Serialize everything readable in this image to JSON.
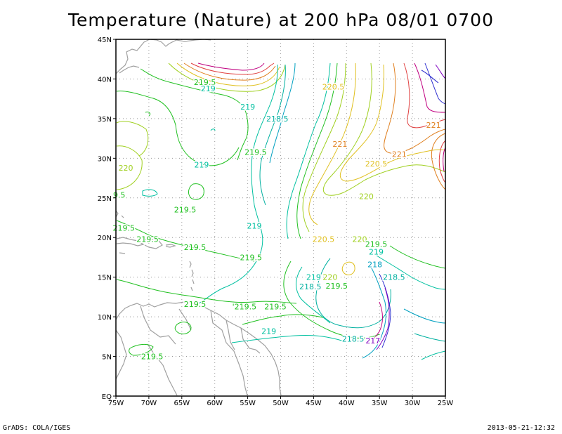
{
  "title": "Temperature (Nature) at 200 hPa 08/01 0700",
  "footer": {
    "left": "GrADS: COLA/IGES",
    "right": "2013-05-21-12:32"
  },
  "map": {
    "lon_range": [
      -75,
      -25
    ],
    "lat_range": [
      0,
      45
    ],
    "x_ticks": [
      {
        "value": -75,
        "label": "75W"
      },
      {
        "value": -70,
        "label": "70W"
      },
      {
        "value": -65,
        "label": "65W"
      },
      {
        "value": -60,
        "label": "60W"
      },
      {
        "value": -55,
        "label": "55W"
      },
      {
        "value": -50,
        "label": "50W"
      },
      {
        "value": -45,
        "label": "45W"
      },
      {
        "value": -40,
        "label": "40W"
      },
      {
        "value": -35,
        "label": "35W"
      },
      {
        "value": -30,
        "label": "30W"
      },
      {
        "value": -25,
        "label": "25W"
      }
    ],
    "y_ticks": [
      {
        "value": 0,
        "label": "EQ"
      },
      {
        "value": 5,
        "label": "5N"
      },
      {
        "value": 10,
        "label": "10N"
      },
      {
        "value": 15,
        "label": "15N"
      },
      {
        "value": 20,
        "label": "20N"
      },
      {
        "value": 25,
        "label": "25N"
      },
      {
        "value": 30,
        "label": "30N"
      },
      {
        "value": 35,
        "label": "35N"
      },
      {
        "value": 40,
        "label": "40N"
      },
      {
        "value": 45,
        "label": "45N"
      }
    ],
    "grid": "dotted",
    "coastline_color": "#a0a0a0",
    "contour_colors": {
      "217": "#8000c0",
      "217.5": "#3030d0",
      "218": "#00a0c0",
      "218.5": "#00b0a0",
      "219": "#00c0a0",
      "219.5": "#20c020",
      "220": "#a0d020",
      "220.5": "#e0c020",
      "221": "#e08020",
      "221.5": "#e04040",
      "222": "#c00080"
    },
    "contour_labels": [
      {
        "text": "219.5",
        "lon": -61.5,
        "lat": 39.6
      },
      {
        "text": "219",
        "lon": -61.0,
        "lat": 38.8
      },
      {
        "text": "219",
        "lon": -55.0,
        "lat": 36.5
      },
      {
        "text": "218.5",
        "lon": -50.5,
        "lat": 35.0
      },
      {
        "text": "219.5",
        "lon": -53.8,
        "lat": 30.8
      },
      {
        "text": "219",
        "lon": -62.0,
        "lat": 29.2
      },
      {
        "text": "220",
        "lon": -73.5,
        "lat": 28.8
      },
      {
        "text": "9.5",
        "lon": -74.5,
        "lat": 25.4
      },
      {
        "text": "219.5",
        "lon": -64.5,
        "lat": 23.5
      },
      {
        "text": "219",
        "lon": -54.0,
        "lat": 21.5
      },
      {
        "text": "219.5",
        "lon": -73.8,
        "lat": 21.2
      },
      {
        "text": "219.5",
        "lon": -70.2,
        "lat": 19.8
      },
      {
        "text": "219.5",
        "lon": -63.0,
        "lat": 18.8
      },
      {
        "text": "219.5",
        "lon": -54.5,
        "lat": 17.5
      },
      {
        "text": "220.5",
        "lon": -42.0,
        "lat": 39.0
      },
      {
        "text": "221",
        "lon": -26.8,
        "lat": 34.2
      },
      {
        "text": "221",
        "lon": -41.0,
        "lat": 31.8
      },
      {
        "text": "221",
        "lon": -32.0,
        "lat": 30.5
      },
      {
        "text": "220.5",
        "lon": -35.5,
        "lat": 29.3
      },
      {
        "text": "220",
        "lon": -37.0,
        "lat": 25.2
      },
      {
        "text": "220.5",
        "lon": -43.5,
        "lat": 19.8
      },
      {
        "text": "220",
        "lon": -38.0,
        "lat": 19.8
      },
      {
        "text": "219.5",
        "lon": -35.5,
        "lat": 19.2
      },
      {
        "text": "219",
        "lon": -35.5,
        "lat": 18.2
      },
      {
        "text": "218",
        "lon": -35.7,
        "lat": 16.6
      },
      {
        "text": "218.5",
        "lon": -32.8,
        "lat": 15.0
      },
      {
        "text": "219",
        "lon": -45.0,
        "lat": 15.0
      },
      {
        "text": "220",
        "lon": -42.5,
        "lat": 15.0
      },
      {
        "text": "218.5",
        "lon": -45.5,
        "lat": 13.8
      },
      {
        "text": "219.5",
        "lon": -41.5,
        "lat": 13.9
      },
      {
        "text": "219.5",
        "lon": -63.0,
        "lat": 11.6
      },
      {
        "text": "'219.5",
        "lon": -55.5,
        "lat": 11.3
      },
      {
        "text": "219.5",
        "lon": -50.8,
        "lat": 11.3
      },
      {
        "text": "219",
        "lon": -51.8,
        "lat": 8.2
      },
      {
        "text": "218.5",
        "lon": -39.0,
        "lat": 7.2
      },
      {
        "text": "217",
        "lon": -36.0,
        "lat": 7.0
      },
      {
        "text": "219.5",
        "lon": -69.5,
        "lat": 5.0
      }
    ]
  }
}
